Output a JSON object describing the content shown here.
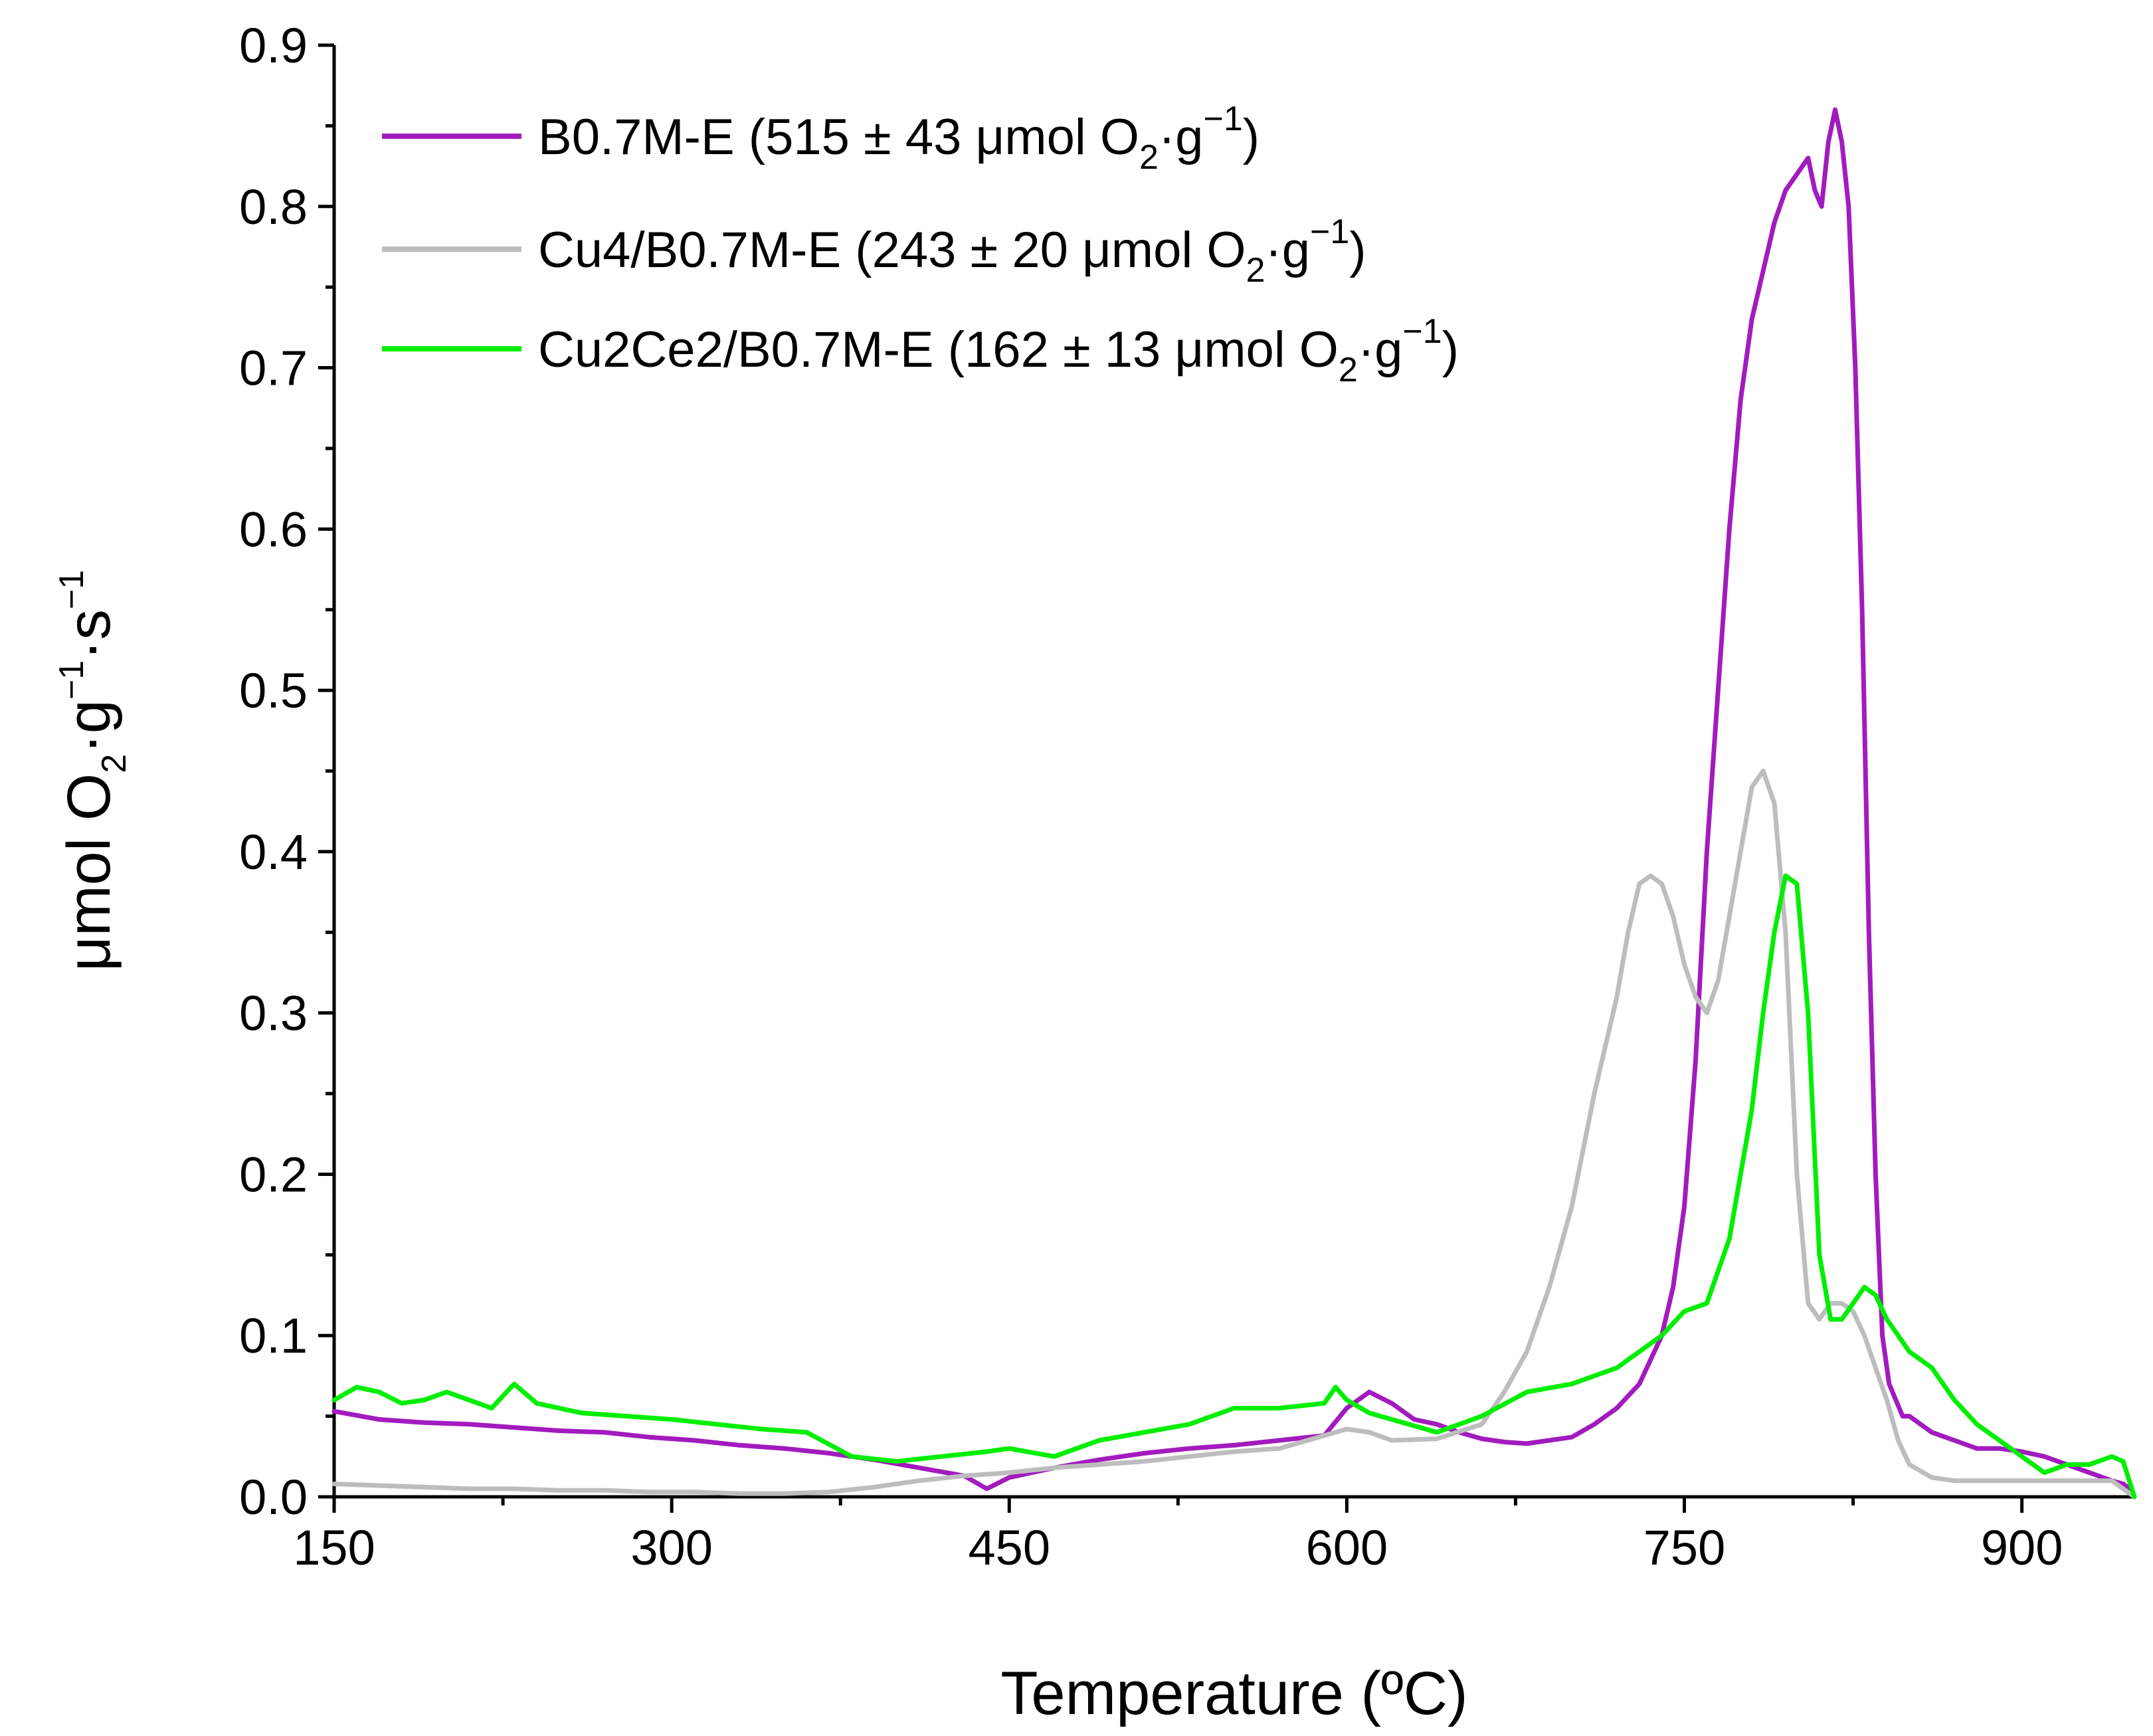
{
  "chart_data": {
    "type": "line",
    "title": "",
    "xlabel": "Temperature (ºC)",
    "ylabel": {
      "prefix": "μmol O",
      "sub": "2",
      "mid": "·g",
      "sup1": "−1",
      "mid2": "·s",
      "sup2": "−1"
    },
    "xlim": [
      150,
      950
    ],
    "ylim": [
      0,
      0.9
    ],
    "xticks": [
      150,
      300,
      450,
      600,
      750,
      900
    ],
    "xtick_labels": [
      "150",
      "300",
      "450",
      "600",
      "750",
      "900"
    ],
    "yticks": [
      0,
      0.1,
      0.2,
      0.3,
      0.4,
      0.5,
      0.6,
      0.7,
      0.8,
      0.9
    ],
    "ytick_labels": [
      "0.0",
      "0.1",
      "0.2",
      "0.3",
      "0.4",
      "0.5",
      "0.6",
      "0.7",
      "0.8",
      "0.9"
    ],
    "grid": false,
    "legend_position": "top-left",
    "series": [
      {
        "name": "B0.7M-E",
        "legend_prefix": "B0.7M-E (515 ± 43 μmol O",
        "legend_sub": "2",
        "legend_mid": "·g",
        "legend_sup": "−1",
        "legend_suffix": ")",
        "color": "#A21BBE",
        "x": [
          150,
          170,
          190,
          210,
          230,
          250,
          270,
          290,
          310,
          330,
          350,
          370,
          390,
          410,
          430,
          440,
          450,
          470,
          490,
          510,
          530,
          550,
          570,
          590,
          600,
          610,
          620,
          630,
          640,
          650,
          660,
          670,
          680,
          690,
          700,
          710,
          720,
          730,
          740,
          745,
          750,
          755,
          760,
          765,
          770,
          775,
          780,
          785,
          790,
          795,
          800,
          805,
          808,
          811,
          814,
          817,
          820,
          823,
          826,
          829,
          832,
          835,
          838,
          841,
          844,
          847,
          850,
          855,
          860,
          870,
          880,
          890,
          900,
          910,
          920,
          930,
          940,
          945,
          948,
          950
        ],
        "y": [
          0.053,
          0.048,
          0.046,
          0.045,
          0.043,
          0.041,
          0.04,
          0.037,
          0.035,
          0.032,
          0.03,
          0.027,
          0.023,
          0.018,
          0.013,
          0.005,
          0.012,
          0.018,
          0.023,
          0.027,
          0.03,
          0.032,
          0.035,
          0.038,
          0.055,
          0.065,
          0.058,
          0.048,
          0.045,
          0.04,
          0.036,
          0.034,
          0.033,
          0.035,
          0.037,
          0.045,
          0.055,
          0.07,
          0.1,
          0.13,
          0.18,
          0.27,
          0.4,
          0.5,
          0.6,
          0.68,
          0.73,
          0.76,
          0.79,
          0.81,
          0.82,
          0.83,
          0.81,
          0.8,
          0.84,
          0.86,
          0.84,
          0.8,
          0.7,
          0.55,
          0.35,
          0.2,
          0.1,
          0.07,
          0.06,
          0.05,
          0.05,
          0.045,
          0.04,
          0.035,
          0.03,
          0.03,
          0.028,
          0.025,
          0.02,
          0.015,
          0.01,
          0.008,
          0.005,
          0.0
        ]
      },
      {
        "name": "Cu4/B0.7M-E",
        "legend_prefix": "Cu4/B0.7M-E (243 ± 20 μmol O",
        "legend_sub": "2",
        "legend_mid": "·g",
        "legend_sup": "−1",
        "legend_suffix": ")",
        "color": "#BDBDBD",
        "x": [
          150,
          170,
          190,
          210,
          230,
          250,
          270,
          290,
          310,
          330,
          350,
          370,
          390,
          410,
          430,
          450,
          470,
          490,
          510,
          530,
          550,
          570,
          590,
          600,
          610,
          620,
          640,
          660,
          670,
          680,
          690,
          700,
          710,
          720,
          725,
          730,
          735,
          740,
          745,
          750,
          755,
          760,
          765,
          770,
          775,
          780,
          785,
          790,
          795,
          800,
          805,
          810,
          815,
          820,
          825,
          830,
          835,
          840,
          845,
          850,
          860,
          870,
          880,
          890,
          900,
          920,
          940,
          950
        ],
        "y": [
          0.008,
          0.007,
          0.006,
          0.005,
          0.005,
          0.004,
          0.004,
          0.003,
          0.003,
          0.002,
          0.002,
          0.003,
          0.006,
          0.01,
          0.013,
          0.015,
          0.018,
          0.02,
          0.022,
          0.025,
          0.028,
          0.03,
          0.038,
          0.042,
          0.04,
          0.035,
          0.036,
          0.045,
          0.065,
          0.09,
          0.13,
          0.18,
          0.25,
          0.31,
          0.35,
          0.38,
          0.385,
          0.38,
          0.36,
          0.33,
          0.31,
          0.3,
          0.32,
          0.36,
          0.4,
          0.44,
          0.45,
          0.43,
          0.35,
          0.2,
          0.12,
          0.11,
          0.12,
          0.12,
          0.115,
          0.1,
          0.08,
          0.06,
          0.035,
          0.02,
          0.012,
          0.01,
          0.01,
          0.01,
          0.01,
          0.01,
          0.01,
          0.0
        ]
      },
      {
        "name": "Cu2Ce2/B0.7M-E",
        "legend_prefix": "Cu2Ce2/B0.7M-E (162 ± 13 μmol O",
        "legend_sub": "2",
        "legend_mid": "·g",
        "legend_sup": "−1",
        "legend_suffix": ")",
        "color": "#00EE00",
        "x": [
          150,
          160,
          170,
          180,
          190,
          200,
          210,
          220,
          230,
          240,
          250,
          260,
          280,
          300,
          320,
          340,
          360,
          380,
          400,
          420,
          440,
          450,
          470,
          490,
          510,
          530,
          550,
          570,
          590,
          595,
          600,
          610,
          620,
          640,
          660,
          680,
          700,
          720,
          740,
          750,
          760,
          770,
          780,
          785,
          790,
          795,
          800,
          805,
          810,
          815,
          820,
          825,
          830,
          835,
          840,
          850,
          860,
          870,
          880,
          890,
          900,
          910,
          920,
          930,
          940,
          945,
          950
        ],
        "y": [
          0.06,
          0.068,
          0.065,
          0.058,
          0.06,
          0.065,
          0.06,
          0.055,
          0.07,
          0.058,
          0.055,
          0.052,
          0.05,
          0.048,
          0.045,
          0.042,
          0.04,
          0.025,
          0.022,
          0.025,
          0.028,
          0.03,
          0.025,
          0.035,
          0.04,
          0.045,
          0.055,
          0.055,
          0.058,
          0.068,
          0.06,
          0.052,
          0.048,
          0.04,
          0.05,
          0.065,
          0.07,
          0.08,
          0.1,
          0.115,
          0.12,
          0.16,
          0.24,
          0.3,
          0.35,
          0.385,
          0.38,
          0.3,
          0.15,
          0.11,
          0.11,
          0.12,
          0.13,
          0.125,
          0.11,
          0.09,
          0.08,
          0.06,
          0.045,
          0.035,
          0.025,
          0.015,
          0.02,
          0.02,
          0.025,
          0.022,
          0.0
        ]
      }
    ]
  }
}
